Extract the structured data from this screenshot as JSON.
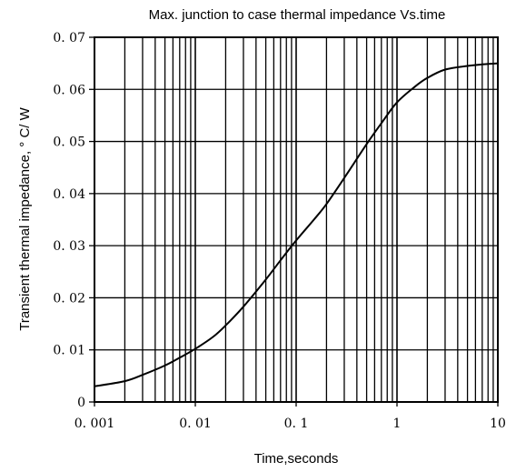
{
  "chart_data": {
    "type": "line",
    "title": "Max. junction to case thermal impedance Vs.time",
    "xlabel": "Time,seconds",
    "ylabel": "Transient thermal impedance, ° C/ W",
    "x_scale": "log",
    "xlim": [
      0.001,
      10
    ],
    "ylim": [
      0,
      0.07
    ],
    "grid": true,
    "x_ticks": [
      {
        "value": 0.001,
        "label": "0. 001"
      },
      {
        "value": 0.01,
        "label": "0. 01"
      },
      {
        "value": 0.1,
        "label": "0. 1"
      },
      {
        "value": 1,
        "label": "1"
      },
      {
        "value": 10,
        "label": "10"
      }
    ],
    "y_ticks": [
      {
        "value": 0,
        "label": "0"
      },
      {
        "value": 0.01,
        "label": "0. 01"
      },
      {
        "value": 0.02,
        "label": "0. 02"
      },
      {
        "value": 0.03,
        "label": "0. 03"
      },
      {
        "value": 0.04,
        "label": "0. 04"
      },
      {
        "value": 0.05,
        "label": "0. 05"
      },
      {
        "value": 0.06,
        "label": "0. 06"
      },
      {
        "value": 0.07,
        "label": "0. 07"
      }
    ],
    "series": [
      {
        "x": [
          0.001,
          0.002,
          0.003,
          0.005,
          0.007,
          0.01,
          0.015,
          0.02,
          0.03,
          0.05,
          0.07,
          0.1,
          0.15,
          0.2,
          0.3,
          0.5,
          0.7,
          1,
          1.5,
          2,
          3,
          5,
          7,
          10
        ],
        "y": [
          0.003,
          0.004,
          0.0052,
          0.007,
          0.0085,
          0.0102,
          0.0125,
          0.0147,
          0.0183,
          0.0235,
          0.0272,
          0.031,
          0.035,
          0.038,
          0.043,
          0.0495,
          0.0535,
          0.0575,
          0.0605,
          0.0622,
          0.0638,
          0.0645,
          0.0648,
          0.065
        ]
      }
    ]
  }
}
